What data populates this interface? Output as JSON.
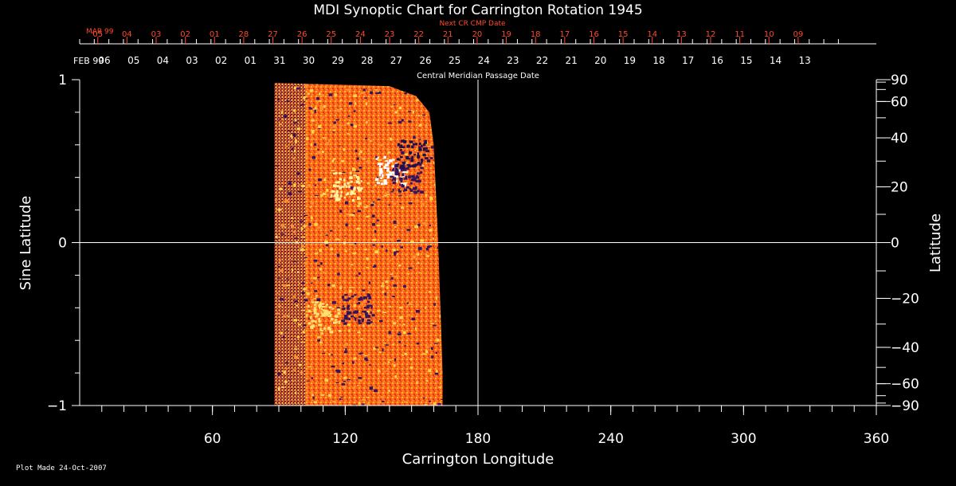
{
  "chart_data": {
    "type": "heatmap",
    "title": "MDI Synoptic Chart for Carrington Rotation 1945",
    "xlabel": "Carrington Longitude",
    "ylabel_left": "Sine Latitude",
    "ylabel_right": "Latitude",
    "xlim": [
      0,
      360
    ],
    "ylim": [
      -1,
      1
    ],
    "x_tick_labels": [
      60,
      120,
      180,
      240,
      300,
      360
    ],
    "y_left_tick_labels": [
      {
        "value": 1,
        "label": "1"
      },
      {
        "value": 0,
        "label": "0"
      },
      {
        "value": -1,
        "label": "−1"
      }
    ],
    "y_right_tick_labels": [
      {
        "deg": 90,
        "label": "90"
      },
      {
        "deg": 60,
        "label": "60"
      },
      {
        "deg": 40,
        "label": "40"
      },
      {
        "deg": 20,
        "label": "20"
      },
      {
        "deg": 0,
        "label": "0"
      },
      {
        "deg": -20,
        "label": "−20"
      },
      {
        "deg": -40,
        "label": "−40"
      },
      {
        "deg": -60,
        "label": "−60"
      },
      {
        "deg": -90,
        "label": "−90"
      }
    ],
    "grid": {
      "horizontal_at": 0,
      "vertical_at": 180
    },
    "top_axis": {
      "label": "Central Meridian Passage Date",
      "month_label": "FEB 99",
      "dates": [
        "06",
        "05",
        "04",
        "03",
        "02",
        "01",
        "31",
        "30",
        "29",
        "28",
        "27",
        "26",
        "25",
        "24",
        "23",
        "22",
        "21",
        "20",
        "19",
        "18",
        "17",
        "16",
        "15",
        "14",
        "13"
      ]
    },
    "next_axis": {
      "label": "Next CR CMP Date",
      "month_label": "MAR 99",
      "dates": [
        "05",
        "04",
        "03",
        "02",
        "01",
        "28",
        "27",
        "26",
        "25",
        "24",
        "23",
        "22",
        "21",
        "20",
        "19",
        "18",
        "17",
        "16",
        "15",
        "14",
        "13",
        "12",
        "11",
        "10",
        "09"
      ]
    },
    "data_extent": {
      "lon_start": 88,
      "noisy_strip_end": 102,
      "edge_points": [
        {
          "sinlat": 0.96,
          "lon": 140
        },
        {
          "sinlat": 0.9,
          "lon": 152
        },
        {
          "sinlat": 0.8,
          "lon": 158
        },
        {
          "sinlat": 0.6,
          "lon": 160
        },
        {
          "sinlat": 0.3,
          "lon": 161
        },
        {
          "sinlat": 0.0,
          "lon": 162
        },
        {
          "sinlat": -0.4,
          "lon": 163
        },
        {
          "sinlat": -0.8,
          "lon": 164
        },
        {
          "sinlat": -1.0,
          "lon": 164
        }
      ]
    },
    "colors": {
      "background": "#000000",
      "axis": "#ffffff",
      "next_axis": "#ff4a2a",
      "map_base": "#ff6a1a",
      "map_bright": "#ffd24a",
      "map_dark": "#33145e"
    }
  },
  "footer": {
    "plot_made": "Plot Made 24-Oct-2007"
  }
}
